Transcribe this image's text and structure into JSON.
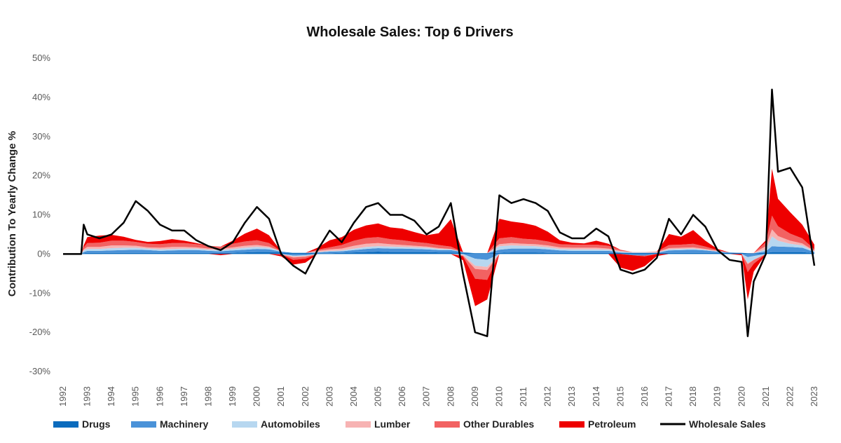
{
  "chart_data": {
    "type": "area",
    "title": "Wholesale Sales: Top 6 Drivers",
    "xlabel": "",
    "ylabel": "Contribution To Yearly Change %",
    "ylim": [
      -30,
      50
    ],
    "yticks": [
      -30,
      -20,
      -10,
      0,
      10,
      20,
      30,
      40,
      50
    ],
    "ytick_labels": [
      "-30%",
      "-20%",
      "-10%",
      "0%",
      "10%",
      "20%",
      "30%",
      "40%",
      "50%"
    ],
    "xlim": [
      1992,
      2023
    ],
    "xtick_labels": [
      "1992",
      "1993",
      "1994",
      "1995",
      "1996",
      "1997",
      "1998",
      "1999",
      "2000",
      "2001",
      "2002",
      "2003",
      "2004",
      "2005",
      "2006",
      "2007",
      "2008",
      "2009",
      "2010",
      "2011",
      "2012",
      "2013",
      "2014",
      "2015",
      "2016",
      "2017",
      "2018",
      "2019",
      "2020",
      "2021",
      "2022",
      "2023"
    ],
    "grid": false,
    "legend_position": "bottom",
    "x": [
      1992,
      1992.75,
      1992.85,
      1993,
      1993.5,
      1994,
      1994.5,
      1995,
      1995.5,
      1996,
      1996.5,
      1997,
      1997.5,
      1998,
      1998.5,
      1999,
      1999.5,
      2000,
      2000.5,
      2001,
      2001.5,
      2002,
      2002.5,
      2003,
      2003.5,
      2004,
      2004.5,
      2005,
      2005.5,
      2006,
      2006.5,
      2007,
      2007.5,
      2008,
      2008.5,
      2009,
      2009.5,
      2010,
      2010.5,
      2011,
      2011.5,
      2012,
      2012.5,
      2013,
      2013.5,
      2014,
      2014.5,
      2015,
      2015.5,
      2016,
      2016.5,
      2017,
      2017.5,
      2018,
      2018.5,
      2019,
      2019.5,
      2020,
      2020.25,
      2020.5,
      2021,
      2021.25,
      2021.5,
      2022,
      2022.5,
      2023
    ],
    "series": [
      {
        "name": "Drugs",
        "color": "#0b6bbd",
        "type": "area",
        "values": [
          0,
          0,
          0.2,
          0.3,
          0.3,
          0.3,
          0.3,
          0.3,
          0.3,
          0.3,
          0.3,
          0.3,
          0.3,
          0.3,
          0.3,
          0.3,
          0.4,
          0.5,
          0.5,
          0.4,
          0.3,
          0.3,
          0.2,
          0.2,
          0.3,
          0.4,
          0.5,
          0.6,
          0.5,
          0.5,
          0.5,
          0.5,
          0.4,
          0.4,
          0.3,
          0.2,
          0.2,
          0.3,
          0.4,
          0.4,
          0.4,
          0.3,
          0.3,
          0.3,
          0.3,
          0.3,
          0.3,
          0.3,
          0.3,
          0.3,
          0.3,
          0.3,
          0.3,
          0.3,
          0.3,
          0.3,
          0.3,
          0.3,
          0.2,
          0.2,
          0.3,
          0.5,
          0.5,
          0.5,
          0.5,
          0.2
        ]
      },
      {
        "name": "Machinery",
        "color": "#4a92d8",
        "type": "area",
        "values": [
          0,
          0,
          0.3,
          0.5,
          0.5,
          0.6,
          0.7,
          0.8,
          0.7,
          0.5,
          0.6,
          0.7,
          0.7,
          0.5,
          0.4,
          0.6,
          0.7,
          0.8,
          0.7,
          0.2,
          -0.4,
          -0.3,
          0.2,
          0.4,
          0.4,
          0.6,
          0.8,
          0.9,
          0.9,
          0.9,
          0.8,
          0.7,
          0.6,
          0.6,
          0.2,
          -1.2,
          -1.5,
          0.8,
          1.0,
          1.0,
          1.0,
          0.9,
          0.6,
          0.5,
          0.5,
          0.5,
          0.5,
          0.1,
          -0.3,
          -0.4,
          0.0,
          0.6,
          0.7,
          0.8,
          0.6,
          0.3,
          0.1,
          0.0,
          -0.8,
          -0.5,
          0.4,
          1.5,
          1.4,
          1.3,
          1.1,
          0.3
        ]
      },
      {
        "name": "Automobiles",
        "color": "#b7d7f0",
        "type": "area",
        "values": [
          0,
          0,
          0.4,
          0.5,
          0.5,
          0.6,
          0.6,
          0.5,
          0.4,
          0.4,
          0.4,
          0.4,
          0.4,
          0.3,
          0.3,
          0.4,
          0.5,
          0.5,
          0.4,
          0.1,
          -0.2,
          -0.2,
          0.1,
          0.2,
          0.2,
          0.4,
          0.5,
          0.5,
          0.5,
          0.4,
          0.4,
          0.4,
          0.3,
          0.2,
          -0.2,
          -1.8,
          -1.8,
          0.9,
          0.8,
          0.7,
          0.6,
          0.5,
          0.4,
          0.4,
          0.4,
          0.4,
          0.3,
          0.2,
          0.1,
          0.1,
          0.1,
          0.3,
          0.3,
          0.3,
          0.2,
          0.1,
          0.0,
          0.0,
          -1.5,
          -1.0,
          0.5,
          2.5,
          1.5,
          0.8,
          0.6,
          0.2
        ]
      },
      {
        "name": "Lumber",
        "color": "#f7b3b3",
        "type": "area",
        "values": [
          0,
          0,
          0.3,
          0.5,
          0.5,
          0.7,
          0.6,
          0.5,
          0.3,
          0.4,
          0.5,
          0.4,
          0.3,
          0.3,
          0.3,
          0.4,
          0.5,
          0.5,
          0.3,
          -0.1,
          -0.3,
          -0.2,
          0.3,
          0.4,
          0.5,
          0.7,
          0.8,
          0.8,
          0.6,
          0.5,
          0.4,
          0.3,
          0.2,
          0.1,
          -0.2,
          -0.8,
          -0.8,
          0.5,
          0.6,
          0.5,
          0.5,
          0.5,
          0.4,
          0.4,
          0.4,
          0.4,
          0.3,
          0.2,
          0.1,
          0.1,
          0.1,
          0.3,
          0.3,
          0.3,
          0.2,
          0.1,
          0.0,
          0.0,
          -0.3,
          0.1,
          0.8,
          1.8,
          1.2,
          0.8,
          0.5,
          0.1
        ]
      },
      {
        "name": "Other Durables",
        "color": "#f26262",
        "type": "area",
        "values": [
          0,
          0,
          0.5,
          1.0,
          1.1,
          1.2,
          1.2,
          1.0,
          0.9,
          0.9,
          1.0,
          1.0,
          0.8,
          0.7,
          0.6,
          0.9,
          1.1,
          1.2,
          0.9,
          0.0,
          -0.6,
          -0.5,
          0.3,
          0.5,
          0.9,
          1.3,
          1.5,
          1.5,
          1.3,
          1.2,
          1.0,
          0.9,
          0.8,
          0.6,
          -0.2,
          -2.5,
          -2.5,
          1.5,
          1.5,
          1.3,
          1.2,
          1.0,
          0.8,
          0.8,
          0.8,
          0.8,
          0.7,
          0.3,
          0.0,
          -0.2,
          0.1,
          0.8,
          0.8,
          0.9,
          0.6,
          0.2,
          0.0,
          0.0,
          -2.0,
          -1.0,
          1.0,
          3.5,
          2.5,
          1.8,
          1.3,
          0.4
        ]
      },
      {
        "name": "Petroleum",
        "color": "#ee0000",
        "type": "area",
        "values": [
          0,
          0,
          0.5,
          1.5,
          1.8,
          1.5,
          1.0,
          0.5,
          0.5,
          0.8,
          1.0,
          0.6,
          0.3,
          0.0,
          -0.3,
          0.8,
          2.0,
          3.0,
          2.0,
          -0.5,
          -1.2,
          -1.0,
          0.5,
          1.8,
          2.0,
          2.8,
          3.2,
          3.5,
          3.0,
          3.0,
          2.5,
          2.0,
          3.0,
          7.0,
          -1.0,
          -7.0,
          -5.0,
          5.0,
          4.0,
          4.0,
          3.5,
          2.5,
          1.0,
          0.5,
          0.3,
          1.0,
          0.5,
          -3.5,
          -4.0,
          -2.5,
          -0.5,
          2.8,
          2.0,
          3.5,
          1.5,
          0.3,
          0.0,
          -0.3,
          -7.0,
          -2.0,
          0.5,
          12.0,
          7.0,
          5.5,
          3.5,
          1.2
        ]
      },
      {
        "name": "Wholesale Sales",
        "color": "#000000",
        "type": "line",
        "values": [
          0,
          0,
          7.5,
          5.0,
          4.0,
          5.0,
          8.0,
          13.5,
          11.0,
          7.5,
          6.0,
          6.0,
          3.5,
          2.0,
          1.0,
          3.0,
          8.0,
          12.0,
          9.0,
          0.0,
          -3.0,
          -5.0,
          1.0,
          6.0,
          3.0,
          8.0,
          12.0,
          13.0,
          10.0,
          10.0,
          8.5,
          5.0,
          7.0,
          13.0,
          -5.0,
          -20.0,
          -21.0,
          15.0,
          13.0,
          14.0,
          13.0,
          11.0,
          5.5,
          4.0,
          4.0,
          6.5,
          4.5,
          -4.0,
          -5.0,
          -4.0,
          -1.0,
          9.0,
          5.0,
          10.0,
          7.0,
          1.0,
          -1.5,
          -2.0,
          -21.0,
          -7.0,
          0.0,
          42.0,
          21.0,
          22.0,
          17.0,
          -3.0
        ]
      }
    ]
  }
}
